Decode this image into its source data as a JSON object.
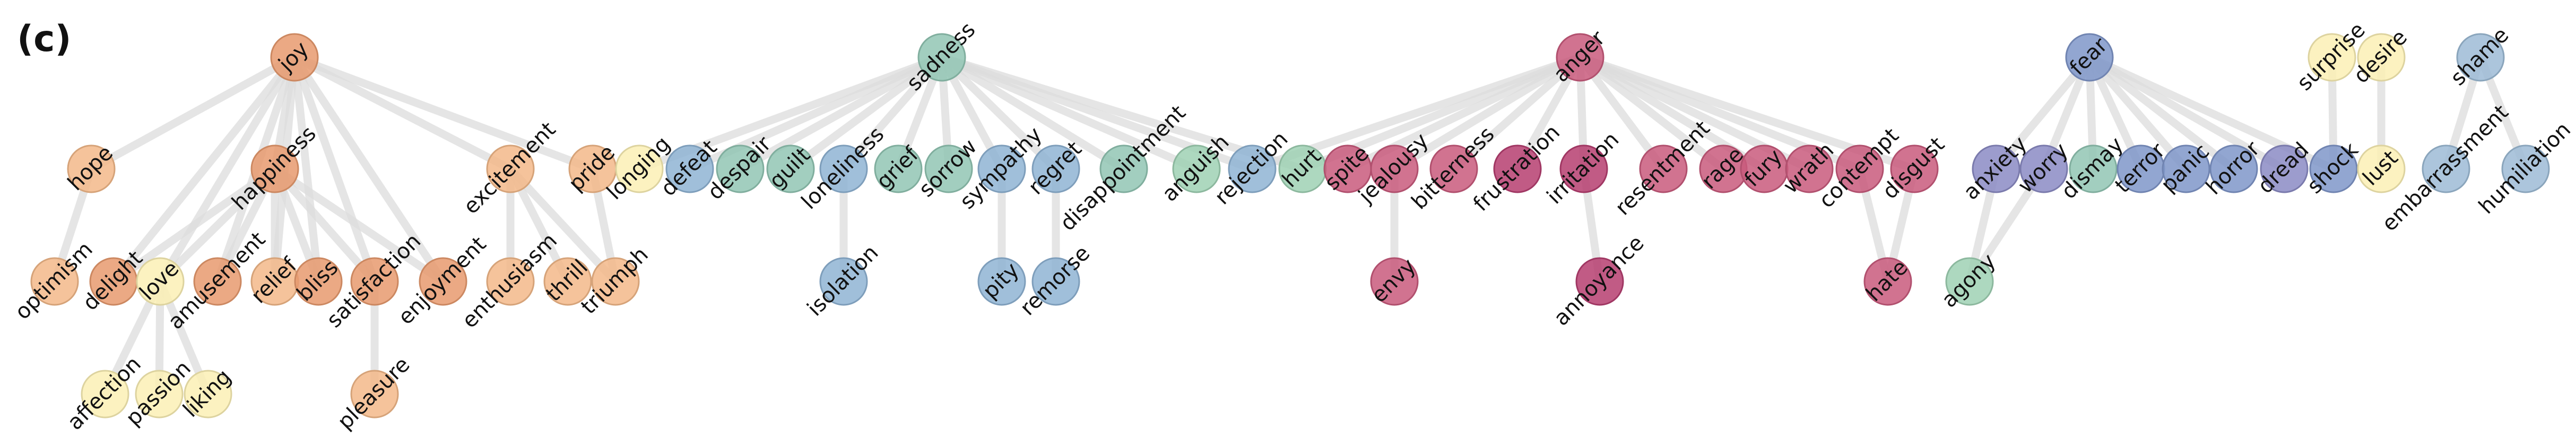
{
  "panel_label": "(c)",
  "colors": {
    "edge": "#dcdcdc",
    "joy": "#e89a6e",
    "joy_light": "#f3b98a",
    "love": "#fbf0b5",
    "sadness": "#92c6b4",
    "blue": "#8fb4d4",
    "green": "#9fd1b4",
    "anger": "#c95b7d",
    "anger_dark": "#b63e70",
    "fear": "#7f96c9",
    "purple": "#8b8bc4",
    "shame": "#9dbbd6"
  },
  "nodes": [
    {
      "id": "joy",
      "label": "joy",
      "color": "joy"
    },
    {
      "id": "hope",
      "label": "hope",
      "color": "joy_light"
    },
    {
      "id": "happiness",
      "label": "happiness",
      "color": "joy"
    },
    {
      "id": "excitement",
      "label": "excitement",
      "color": "joy_light"
    },
    {
      "id": "pride",
      "label": "pride",
      "color": "joy_light"
    },
    {
      "id": "optimism",
      "label": "optimism",
      "color": "joy_light"
    },
    {
      "id": "delight",
      "label": "delight",
      "color": "joy"
    },
    {
      "id": "love",
      "label": "love",
      "color": "love"
    },
    {
      "id": "amusement",
      "label": "amusement",
      "color": "joy"
    },
    {
      "id": "relief",
      "label": "relief",
      "color": "joy_light"
    },
    {
      "id": "bliss",
      "label": "bliss",
      "color": "joy"
    },
    {
      "id": "satisfaction",
      "label": "satisfaction",
      "color": "joy"
    },
    {
      "id": "enjoyment",
      "label": "enjoyment",
      "color": "joy"
    },
    {
      "id": "enthusiasm",
      "label": "enthusiasm",
      "color": "joy_light"
    },
    {
      "id": "thrill",
      "label": "thrill",
      "color": "joy_light"
    },
    {
      "id": "triumph",
      "label": "triumph",
      "color": "joy_light"
    },
    {
      "id": "affection",
      "label": "affection",
      "color": "love"
    },
    {
      "id": "passion",
      "label": "passion",
      "color": "love"
    },
    {
      "id": "liking",
      "label": "liking",
      "color": "love"
    },
    {
      "id": "pleasure",
      "label": "pleasure",
      "color": "joy_light"
    },
    {
      "id": "sadness",
      "label": "sadness",
      "color": "sadness"
    },
    {
      "id": "longing",
      "label": "longing",
      "color": "love"
    },
    {
      "id": "defeat",
      "label": "defeat",
      "color": "blue"
    },
    {
      "id": "despair",
      "label": "despair",
      "color": "sadness"
    },
    {
      "id": "guilt",
      "label": "guilt",
      "color": "sadness"
    },
    {
      "id": "loneliness",
      "label": "loneliness",
      "color": "blue"
    },
    {
      "id": "grief",
      "label": "grief",
      "color": "sadness"
    },
    {
      "id": "sorrow",
      "label": "sorrow",
      "color": "sadness"
    },
    {
      "id": "sympathy",
      "label": "sympathy",
      "color": "blue"
    },
    {
      "id": "regret",
      "label": "regret",
      "color": "blue"
    },
    {
      "id": "disappointment",
      "label": "disappointment",
      "color": "sadness"
    },
    {
      "id": "anguish",
      "label": "anguish",
      "color": "green"
    },
    {
      "id": "isolation",
      "label": "isolation",
      "color": "blue"
    },
    {
      "id": "pity",
      "label": "pity",
      "color": "blue"
    },
    {
      "id": "remorse",
      "label": "remorse",
      "color": "blue"
    },
    {
      "id": "anger",
      "label": "anger",
      "color": "anger"
    },
    {
      "id": "rejection",
      "label": "rejection",
      "color": "blue"
    },
    {
      "id": "hurt",
      "label": "hurt",
      "color": "green"
    },
    {
      "id": "spite",
      "label": "spite",
      "color": "anger"
    },
    {
      "id": "jealousy",
      "label": "jealousy",
      "color": "anger"
    },
    {
      "id": "bitterness",
      "label": "bitterness",
      "color": "anger"
    },
    {
      "id": "frustration",
      "label": "frustration",
      "color": "anger_dark"
    },
    {
      "id": "irritation",
      "label": "irritation",
      "color": "anger_dark"
    },
    {
      "id": "resentment",
      "label": "resentment",
      "color": "anger"
    },
    {
      "id": "rage",
      "label": "rage",
      "color": "anger"
    },
    {
      "id": "fury",
      "label": "fury",
      "color": "anger"
    },
    {
      "id": "wrath",
      "label": "wrath",
      "color": "anger"
    },
    {
      "id": "contempt",
      "label": "contempt",
      "color": "anger"
    },
    {
      "id": "disgust",
      "label": "disgust",
      "color": "anger"
    },
    {
      "id": "envy",
      "label": "envy",
      "color": "anger"
    },
    {
      "id": "annoyance",
      "label": "annoyance",
      "color": "anger_dark"
    },
    {
      "id": "hate",
      "label": "hate",
      "color": "anger"
    },
    {
      "id": "fear",
      "label": "fear",
      "color": "fear"
    },
    {
      "id": "anxiety",
      "label": "anxiety",
      "color": "purple"
    },
    {
      "id": "worry",
      "label": "worry",
      "color": "purple"
    },
    {
      "id": "dismay",
      "label": "dismay",
      "color": "sadness"
    },
    {
      "id": "terror",
      "label": "terror",
      "color": "fear"
    },
    {
      "id": "panic",
      "label": "panic",
      "color": "fear"
    },
    {
      "id": "horror",
      "label": "horror",
      "color": "fear"
    },
    {
      "id": "dread",
      "label": "dread",
      "color": "purple"
    },
    {
      "id": "shock",
      "label": "shock",
      "color": "fear"
    },
    {
      "id": "agony",
      "label": "agony",
      "color": "green"
    },
    {
      "id": "surprise",
      "label": "surprise",
      "color": "love"
    },
    {
      "id": "desire",
      "label": "desire",
      "color": "love"
    },
    {
      "id": "lust",
      "label": "lust",
      "color": "love"
    },
    {
      "id": "shame",
      "label": "shame",
      "color": "shame"
    },
    {
      "id": "embarrassment",
      "label": "embarrassment",
      "color": "shame"
    },
    {
      "id": "humiliation",
      "label": "humiliation",
      "color": "shame"
    }
  ],
  "edges": [
    [
      "joy",
      "hope"
    ],
    [
      "joy",
      "happiness"
    ],
    [
      "joy",
      "excitement"
    ],
    [
      "joy",
      "pride"
    ],
    [
      "joy",
      "delight"
    ],
    [
      "joy",
      "love"
    ],
    [
      "joy",
      "amusement"
    ],
    [
      "joy",
      "relief"
    ],
    [
      "joy",
      "bliss"
    ],
    [
      "joy",
      "satisfaction"
    ],
    [
      "joy",
      "enjoyment"
    ],
    [
      "hope",
      "optimism"
    ],
    [
      "happiness",
      "delight"
    ],
    [
      "happiness",
      "love"
    ],
    [
      "happiness",
      "amusement"
    ],
    [
      "happiness",
      "relief"
    ],
    [
      "happiness",
      "bliss"
    ],
    [
      "happiness",
      "satisfaction"
    ],
    [
      "happiness",
      "enjoyment"
    ],
    [
      "excitement",
      "enthusiasm"
    ],
    [
      "excitement",
      "thrill"
    ],
    [
      "excitement",
      "triumph"
    ],
    [
      "pride",
      "triumph"
    ],
    [
      "love",
      "affection"
    ],
    [
      "love",
      "passion"
    ],
    [
      "love",
      "liking"
    ],
    [
      "satisfaction",
      "pleasure"
    ],
    [
      "sadness",
      "longing"
    ],
    [
      "sadness",
      "defeat"
    ],
    [
      "sadness",
      "despair"
    ],
    [
      "sadness",
      "guilt"
    ],
    [
      "sadness",
      "loneliness"
    ],
    [
      "sadness",
      "grief"
    ],
    [
      "sadness",
      "sorrow"
    ],
    [
      "sadness",
      "sympathy"
    ],
    [
      "sadness",
      "regret"
    ],
    [
      "sadness",
      "disappointment"
    ],
    [
      "sadness",
      "anguish"
    ],
    [
      "sadness",
      "rejection"
    ],
    [
      "sadness",
      "hurt"
    ],
    [
      "loneliness",
      "isolation"
    ],
    [
      "sympathy",
      "pity"
    ],
    [
      "regret",
      "remorse"
    ],
    [
      "anger",
      "rejection"
    ],
    [
      "anger",
      "hurt"
    ],
    [
      "anger",
      "spite"
    ],
    [
      "anger",
      "jealousy"
    ],
    [
      "anger",
      "bitterness"
    ],
    [
      "anger",
      "frustration"
    ],
    [
      "anger",
      "irritation"
    ],
    [
      "anger",
      "resentment"
    ],
    [
      "anger",
      "rage"
    ],
    [
      "anger",
      "fury"
    ],
    [
      "anger",
      "wrath"
    ],
    [
      "anger",
      "contempt"
    ],
    [
      "anger",
      "disgust"
    ],
    [
      "jealousy",
      "envy"
    ],
    [
      "irritation",
      "annoyance"
    ],
    [
      "contempt",
      "hate"
    ],
    [
      "disgust",
      "hate"
    ],
    [
      "fear",
      "anxiety"
    ],
    [
      "fear",
      "worry"
    ],
    [
      "fear",
      "dismay"
    ],
    [
      "fear",
      "terror"
    ],
    [
      "fear",
      "panic"
    ],
    [
      "fear",
      "horror"
    ],
    [
      "fear",
      "dread"
    ],
    [
      "fear",
      "shock"
    ],
    [
      "anxiety",
      "agony"
    ],
    [
      "worry",
      "agony"
    ],
    [
      "surprise",
      "shock"
    ],
    [
      "desire",
      "lust"
    ],
    [
      "shame",
      "embarrassment"
    ],
    [
      "shame",
      "humiliation"
    ]
  ]
}
